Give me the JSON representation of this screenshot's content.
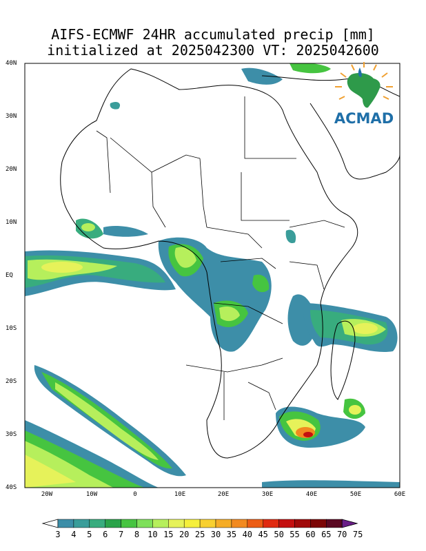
{
  "title_line1": "AIFS-ECMWF 24HR accumulated precip [mm]",
  "title_line2": "initialized at 2025042300 VT: 2025042600",
  "lat_labels": [
    "40N",
    "30N",
    "20N",
    "10N",
    "EQ",
    "10S",
    "20S",
    "30S",
    "40S"
  ],
  "lon_labels": [
    "20W",
    "10W",
    "0",
    "10E",
    "20E",
    "30E",
    "40E",
    "50E",
    "60E"
  ],
  "colorbar": {
    "labels": [
      "3",
      "4",
      "5",
      "6",
      "7",
      "8",
      "10",
      "15",
      "20",
      "25",
      "30",
      "35",
      "40",
      "45",
      "50",
      "55",
      "60",
      "65",
      "70",
      "75"
    ],
    "colors": [
      "#3d8ea8",
      "#3a9d9a",
      "#38ac7e",
      "#2aa34a",
      "#46c440",
      "#7ee05a",
      "#b6ef5c",
      "#e6f25a",
      "#f5ef3c",
      "#f8d030",
      "#f5ac26",
      "#f28a20",
      "#ec5c14",
      "#e02a10",
      "#c41010",
      "#a00a0a",
      "#7c0606",
      "#5a0822",
      "#6a1e88"
    ]
  },
  "logo": {
    "text": "ACMAD",
    "icon": "africa-logo-icon"
  },
  "colors": {
    "land_border": "#000000",
    "logo_blue": "#1f6fa8",
    "logo_green": "#2e9a4a",
    "logo_orange": "#f0a030"
  }
}
